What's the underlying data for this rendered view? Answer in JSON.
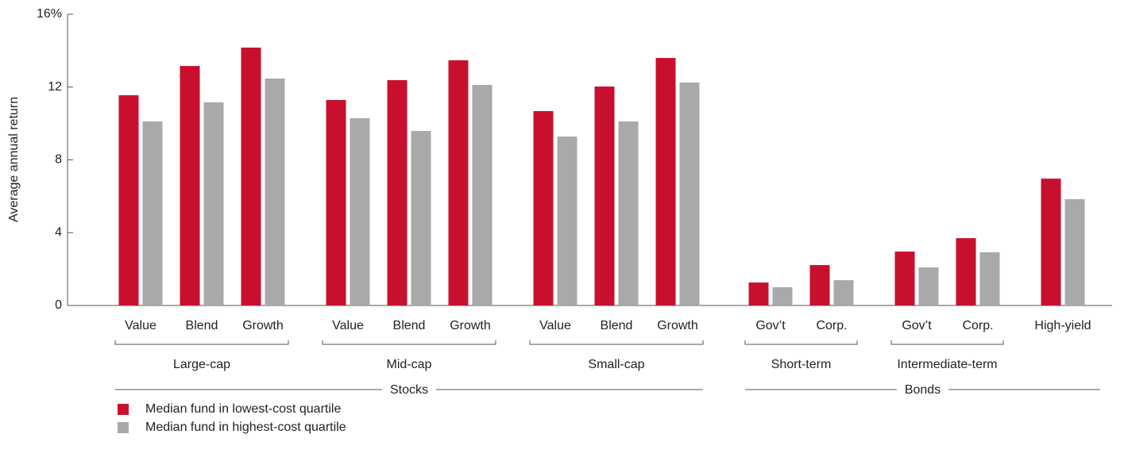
{
  "chart_data": {
    "type": "bar",
    "ylabel": "Average annual return",
    "ylim": [
      0,
      16
    ],
    "yticks": [
      0,
      4,
      8,
      12,
      {
        "value": 16,
        "label": "16%"
      }
    ],
    "sections": [
      {
        "name": "Stocks",
        "groups": [
          {
            "name": "Large-cap",
            "categories": [
              "Value",
              "Blend",
              "Growth"
            ]
          },
          {
            "name": "Mid-cap",
            "categories": [
              "Value",
              "Blend",
              "Growth"
            ]
          },
          {
            "name": "Small-cap",
            "categories": [
              "Value",
              "Blend",
              "Growth"
            ]
          }
        ]
      },
      {
        "name": "Bonds",
        "groups": [
          {
            "name": "Short-term",
            "categories": [
              "Gov’t",
              "Corp."
            ]
          },
          {
            "name": "Intermediate-term",
            "categories": [
              "Gov’t",
              "Corp."
            ]
          },
          {
            "categories": [
              "High-yield"
            ]
          }
        ]
      }
    ],
    "series": [
      {
        "name": "Median fund in lowest-cost quartile",
        "color": "#c8102e",
        "values": [
          11.55,
          13.16,
          14.17,
          11.29,
          12.38,
          13.47,
          10.68,
          12.03,
          13.6,
          1.26,
          2.22,
          2.96,
          3.7,
          6.97
        ]
      },
      {
        "name": "Median fund in highest-cost quartile",
        "color": "#a8a9ab",
        "values": [
          10.11,
          11.16,
          12.47,
          10.29,
          9.59,
          12.12,
          9.28,
          10.11,
          12.25,
          1.0,
          1.39,
          2.09,
          2.92,
          5.84
        ]
      }
    ],
    "legend": "bottom-left"
  }
}
